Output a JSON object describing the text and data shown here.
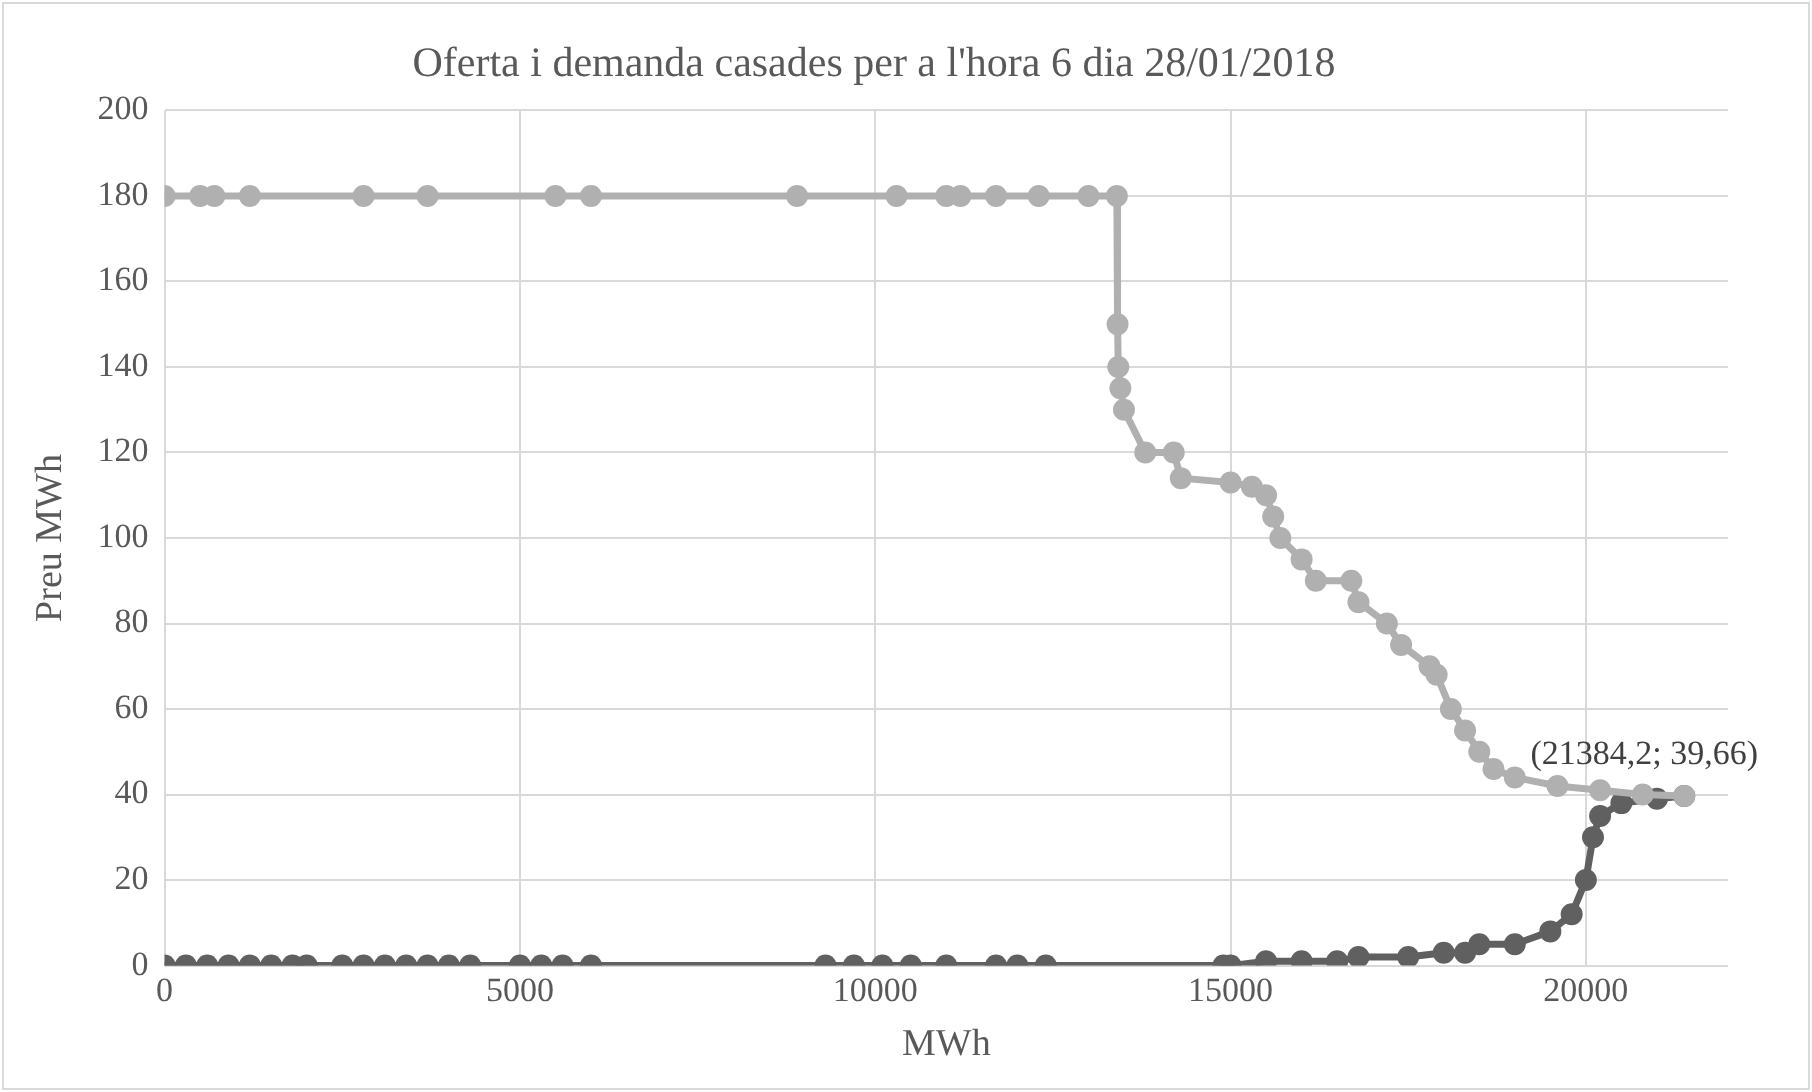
{
  "chart_data": {
    "type": "line",
    "title": "Oferta i demanda casades per a l'hora 6 dia 28/01/2018",
    "xlabel": "MWh",
    "ylabel": "Preu MWh",
    "xlim": [
      0,
      22000
    ],
    "xticks": [
      0,
      5000,
      10000,
      15000,
      20000
    ],
    "ylim": [
      0,
      200
    ],
    "yticks": [
      0,
      20,
      40,
      60,
      80,
      100,
      120,
      140,
      160,
      180,
      200
    ],
    "grid": true,
    "legend": false,
    "marker": "circle",
    "line_style": "solid",
    "annotations": [
      {
        "text": "(21384,2; 39,66)",
        "x": 21384.2,
        "y": 39.66
      }
    ],
    "series": [
      {
        "color": "#b0b0b0",
        "x": [
          0,
          500,
          700,
          1200,
          2800,
          3700,
          5500,
          6000,
          8900,
          10300,
          11000,
          11200,
          11700,
          12300,
          13000,
          13400,
          13410,
          13420,
          13450,
          13500,
          13800,
          14200,
          14300,
          15000,
          15300,
          15500,
          15600,
          15700,
          16000,
          16200,
          16700,
          16800,
          17200,
          17400,
          17800,
          17900,
          18100,
          18300,
          18500,
          18700,
          19000,
          19600,
          20200,
          20800,
          21384.2
        ],
        "values": [
          180,
          180,
          180,
          180,
          180,
          180,
          180,
          180,
          180,
          180,
          180,
          180,
          180,
          180,
          180,
          180,
          150,
          140,
          135,
          130,
          120,
          120,
          114,
          113,
          112,
          110,
          105,
          100,
          95,
          90,
          90,
          85,
          80,
          75,
          70,
          68,
          60,
          55,
          50,
          46,
          44,
          42,
          41,
          40,
          39.66
        ]
      },
      {
        "color": "#606060",
        "x": [
          0,
          300,
          600,
          900,
          1200,
          1500,
          1800,
          2000,
          2500,
          2800,
          3100,
          3400,
          3700,
          4000,
          4300,
          5000,
          5300,
          5600,
          6000,
          9300,
          9700,
          10100,
          10500,
          11000,
          11700,
          12000,
          12400,
          14900,
          15000,
          15500,
          16000,
          16500,
          16800,
          17500,
          18000,
          18300,
          18500,
          19000,
          19500,
          19800,
          20000,
          20100,
          20200,
          20500,
          21000,
          21384.2
        ],
        "values": [
          0,
          0,
          0,
          0,
          0,
          0,
          0,
          0,
          0,
          0,
          0,
          0,
          0,
          0,
          0,
          0,
          0,
          0,
          0,
          0,
          0,
          0,
          0,
          0,
          0,
          0,
          0,
          0,
          0,
          1,
          1,
          1,
          2,
          2,
          3,
          3,
          5,
          5,
          8,
          12,
          20,
          30,
          35,
          38,
          39,
          39.66
        ]
      }
    ]
  }
}
